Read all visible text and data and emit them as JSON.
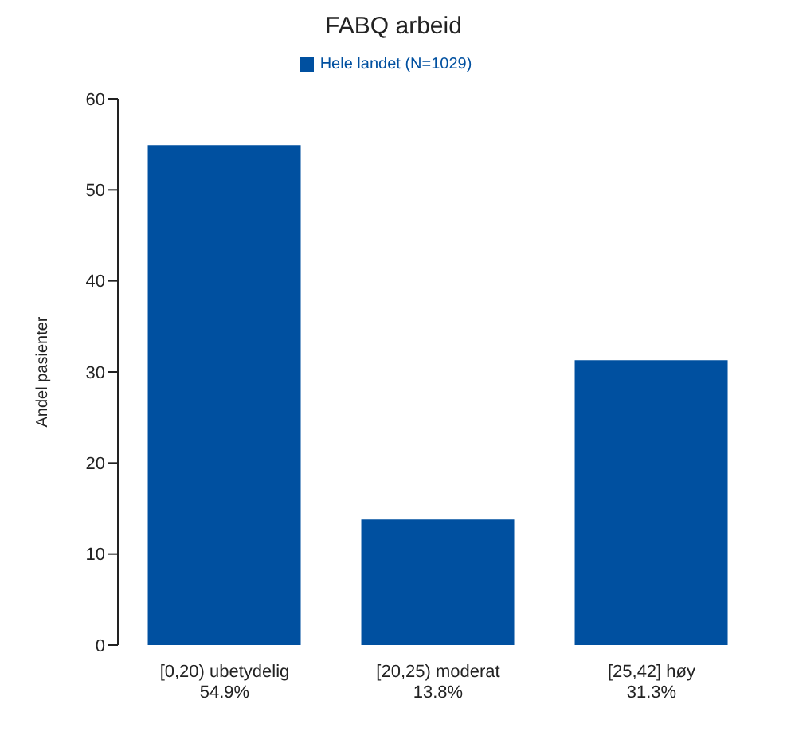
{
  "chart_data": {
    "type": "bar",
    "title": "FABQ arbeid",
    "ylabel": "Andel pasienter",
    "categories": [
      "[0,20) ubetydelig\n54.9%",
      "[20,25) moderat\n13.8%",
      "[25,42] høy\n31.3%"
    ],
    "series": [
      {
        "name": "Hele landet (N=1029)",
        "color": "#0050a0",
        "values": [
          54.9,
          13.8,
          31.3
        ]
      }
    ],
    "ylim": [
      0,
      60
    ],
    "yticks": [
      0,
      10,
      20,
      30,
      40,
      50,
      60
    ],
    "grid": false,
    "legend": "top"
  }
}
